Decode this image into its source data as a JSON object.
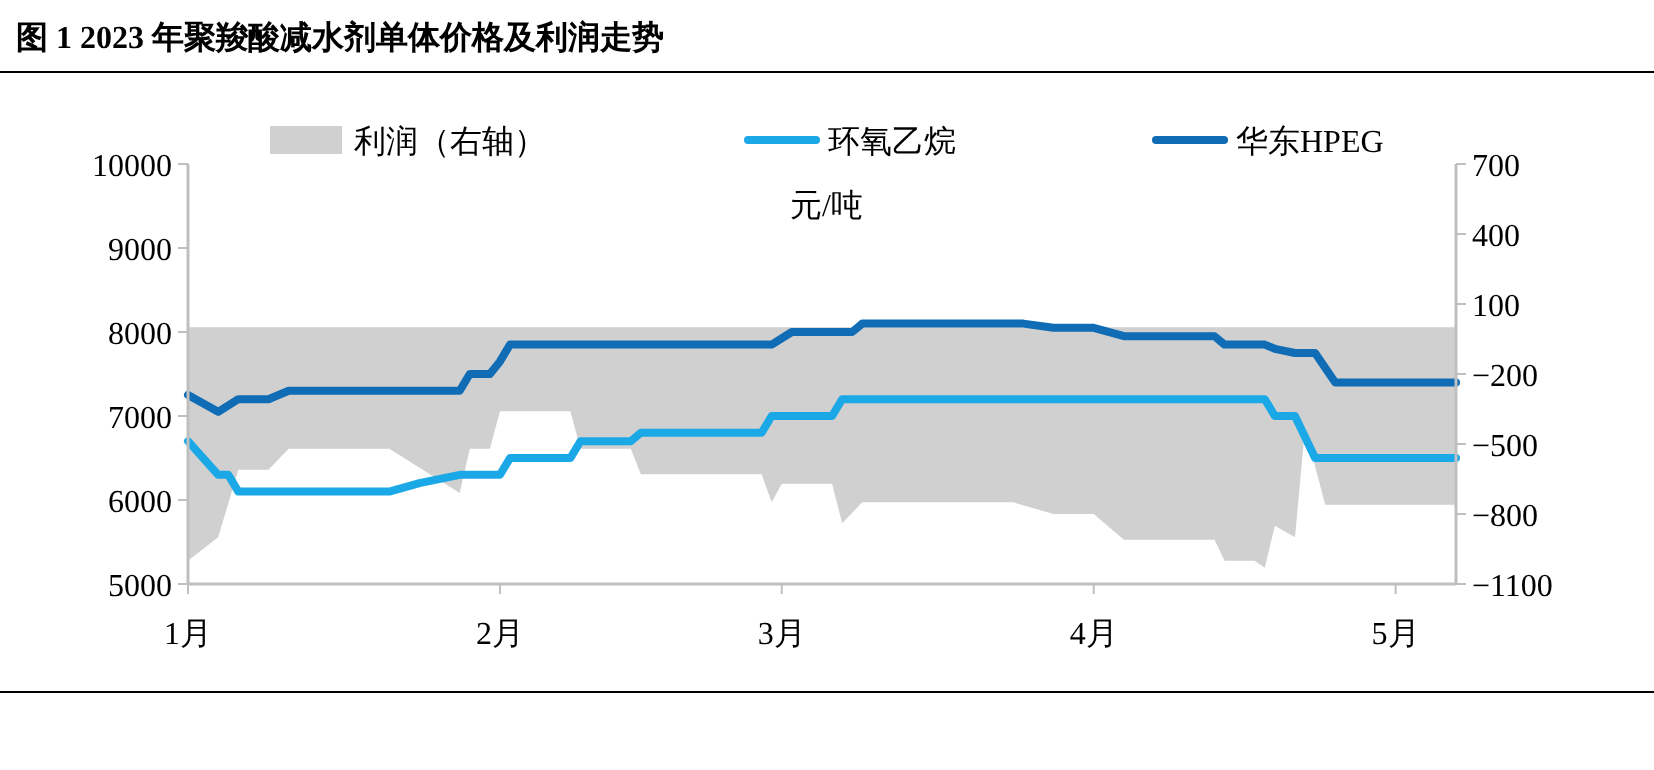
{
  "chart_data": {
    "type": "line",
    "title": "图 1 2023 年聚羧酸减水剂单体价格及利润走势",
    "annotations": [
      "元/吨"
    ],
    "legend": "top",
    "grid": false,
    "xlim": [
      "2023-01-01",
      "2023-05-07"
    ],
    "xticks": [
      {
        "value": "2023-01-01",
        "label": "1月"
      },
      {
        "value": "2023-02-01",
        "label": "2月"
      },
      {
        "value": "2023-03-01",
        "label": "3月"
      },
      {
        "value": "2023-04-01",
        "label": "4月"
      },
      {
        "value": "2023-05-01",
        "label": "5月"
      }
    ],
    "ylim": [
      5000,
      10000
    ],
    "yticks": [
      5000,
      6000,
      7000,
      8000,
      9000,
      10000
    ],
    "y2lim": [
      -1100,
      700
    ],
    "y2ticks": [
      -1100,
      -800,
      -500,
      -200,
      100,
      400,
      700
    ],
    "series": [
      {
        "name": "利润（右轴）",
        "type": "area",
        "axis": "y2",
        "color": "#d0d0d0",
        "x": [
          "2023-01-01",
          "2023-01-04",
          "2023-01-06",
          "2023-01-09",
          "2023-01-11",
          "2023-01-21",
          "2023-01-28",
          "2023-01-29",
          "2023-01-31",
          "2023-02-01",
          "2023-02-08",
          "2023-02-09",
          "2023-02-14",
          "2023-02-15",
          "2023-02-27",
          "2023-02-28",
          "2023-03-01",
          "2023-03-06",
          "2023-03-07",
          "2023-03-09",
          "2023-03-24",
          "2023-03-28",
          "2023-04-01",
          "2023-04-04",
          "2023-04-13",
          "2023-04-14",
          "2023-04-17",
          "2023-04-18",
          "2023-04-19",
          "2023-04-21",
          "2023-04-22",
          "2023-04-24",
          "2023-05-07"
        ],
        "values": [
          -1000,
          -900,
          -610,
          -610,
          -520,
          -520,
          -710,
          -520,
          -520,
          -360,
          -360,
          -520,
          -520,
          -630,
          -630,
          -750,
          -670,
          -670,
          -840,
          -750,
          -750,
          -800,
          -800,
          -910,
          -910,
          -1000,
          -1000,
          -1030,
          -850,
          -900,
          -430,
          -760,
          -760
        ]
      },
      {
        "name": "环氧乙烷",
        "color": "#1ba8e6",
        "x": [
          "2023-01-01",
          "2023-01-04",
          "2023-01-05",
          "2023-01-06",
          "2023-01-21",
          "2023-01-24",
          "2023-01-28",
          "2023-02-01",
          "2023-02-02",
          "2023-02-08",
          "2023-02-09",
          "2023-02-14",
          "2023-02-15",
          "2023-02-27",
          "2023-02-28",
          "2023-03-06",
          "2023-03-07",
          "2023-04-18",
          "2023-04-19",
          "2023-04-21",
          "2023-04-23",
          "2023-05-07"
        ],
        "values": [
          6700,
          6300,
          6300,
          6100,
          6100,
          6200,
          6300,
          6300,
          6500,
          6500,
          6700,
          6700,
          6800,
          6800,
          7000,
          7000,
          7200,
          7200,
          7000,
          7000,
          6500,
          6500
        ]
      },
      {
        "name": "华东HPEG",
        "color": "#0f6cb5",
        "x": [
          "2023-01-01",
          "2023-01-04",
          "2023-01-06",
          "2023-01-09",
          "2023-01-11",
          "2023-01-28",
          "2023-01-29",
          "2023-01-31",
          "2023-02-01",
          "2023-02-02",
          "2023-02-28",
          "2023-03-02",
          "2023-03-08",
          "2023-03-09",
          "2023-03-25",
          "2023-03-28",
          "2023-04-01",
          "2023-04-04",
          "2023-04-13",
          "2023-04-14",
          "2023-04-18",
          "2023-04-19",
          "2023-04-21",
          "2023-04-23",
          "2023-04-25",
          "2023-05-07"
        ],
        "values": [
          7250,
          7050,
          7200,
          7200,
          7300,
          7300,
          7500,
          7500,
          7650,
          7850,
          7850,
          8000,
          8000,
          8100,
          8100,
          8050,
          8050,
          7950,
          7950,
          7850,
          7850,
          7800,
          7750,
          7750,
          7400,
          7400
        ]
      }
    ]
  }
}
